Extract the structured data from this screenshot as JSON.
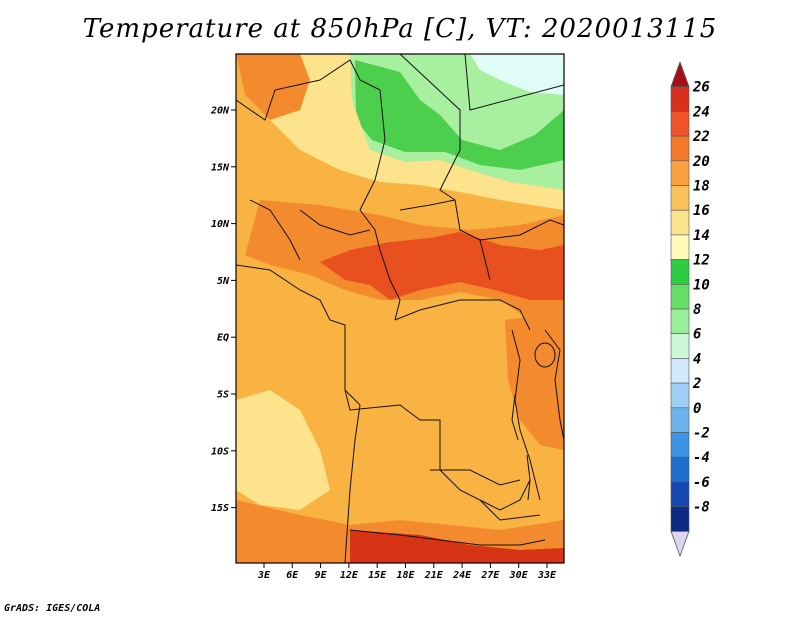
{
  "title": "Temperature at 850hPa [C], VT: 2020013115",
  "credit": "GrADS: IGES/COLA",
  "map": {
    "variable": "Temperature at 850hPa",
    "unit": "C",
    "valid_time": "2020013115",
    "lat_ticks": [
      "20N",
      "15N",
      "10N",
      "5N",
      "EQ",
      "5S",
      "10S",
      "15S"
    ],
    "lon_ticks": [
      "3E",
      "6E",
      "9E",
      "12E",
      "15E",
      "18E",
      "21E",
      "24E",
      "27E",
      "30E",
      "33E"
    ]
  },
  "colorbar": {
    "labels": [
      "26",
      "24",
      "22",
      "20",
      "18",
      "16",
      "14",
      "12",
      "10",
      "8",
      "6",
      "4",
      "2",
      "0",
      "-2",
      "-4",
      "-6",
      "-8"
    ],
    "colors": [
      "#a50f15",
      "#d7301f",
      "#f0522a",
      "#f4792b",
      "#f9a03f",
      "#fbc25e",
      "#fde38c",
      "#fff8b9",
      "#2ecc40",
      "#66dd66",
      "#99ee99",
      "#ccf7d6",
      "#cfe8fb",
      "#9fcff5",
      "#6cb3ee",
      "#3d94e3",
      "#1f6fd0",
      "#1448b0",
      "#0b2a86",
      "#dcd6f3"
    ]
  },
  "legend_colors": {
    "green_north": "#4ccf4c",
    "light_green": "#a8efa0",
    "cyan": "#dffcf6",
    "yellow_light": "#fff2a4",
    "orange": "#f9b343",
    "orange_dark": "#f48a2e",
    "red": "#e8501f",
    "deep_red": "#d63414"
  }
}
